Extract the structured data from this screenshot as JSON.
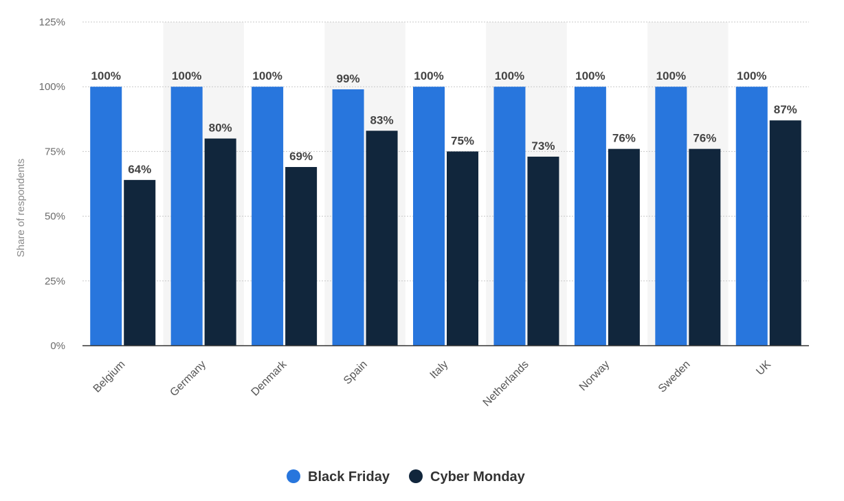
{
  "chart_data": {
    "type": "bar",
    "categories": [
      "Belgium",
      "Germany",
      "Denmark",
      "Spain",
      "Italy",
      "Netherlands",
      "Norway",
      "Sweden",
      "UK"
    ],
    "series": [
      {
        "name": "Black Friday",
        "color": "#2876dd",
        "values": [
          100,
          100,
          100,
          99,
          100,
          100,
          100,
          100,
          100
        ]
      },
      {
        "name": "Cyber Monday",
        "color": "#11263c",
        "values": [
          64,
          80,
          69,
          83,
          75,
          73,
          76,
          76,
          87
        ]
      }
    ],
    "ylabel": "Share of respondents",
    "xlabel": "",
    "ylim": [
      0,
      125
    ],
    "yticks": [
      0,
      25,
      50,
      75,
      100,
      125
    ],
    "tick_suffix": "%",
    "value_suffix": "%",
    "grid": true,
    "legend_position": "bottom-center",
    "colors": {
      "band": "#f5f5f5",
      "grid": "#c8c8c8",
      "axis": "#333333"
    }
  }
}
